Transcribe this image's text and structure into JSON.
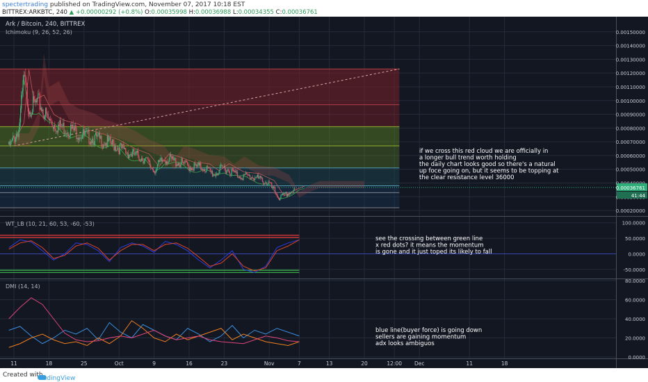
{
  "header": {
    "author": "spectertrading",
    "published_text": "published on TradingView.com, November 07, 2017 10:18 EST",
    "symbol_label": "BITTREX:ARKBTC, 240",
    "change_arrow": "▲",
    "change_text": "+0.00000292 (+0.8%)",
    "o_label": "O:",
    "o_value": "0.00035998",
    "h_label": "H:",
    "h_value": "0.00036988",
    "l_label": "L:",
    "l_value": "0.00034355",
    "c_label": "C:",
    "c_value": "0.00036761"
  },
  "legends": {
    "main_title": "Ark / Bitcoin, 240, BITTREX",
    "main_indicator": "Ichimoku (9, 26, 52, 26)",
    "wt_title": "WT_LB (10, 21, 60, 53, -60, -53)",
    "dmi_title": "DMI (14, 14)"
  },
  "price_tags": {
    "last_price": "0.00036761",
    "countdown": "41:44"
  },
  "footer": {
    "created_with": "Created with",
    "brand": "TradingView"
  },
  "colors": {
    "background": "#131722",
    "grid": "#262b3a",
    "axis_text": "#c9ccd4",
    "candle_up": "#3fae7a",
    "candle_down": "#e0506a",
    "fib_red": "#7a2028",
    "fib_green": "#557a22",
    "fib_teal": "#1c4a52",
    "fib_blue": "#183a5a",
    "wt_red_level": "#e03a3a",
    "wt_green_level": "#3cbf4a",
    "wt_fast": "#2a3fe0",
    "wt_slow": "#e0452a",
    "dmi_plus": "#3a8fe0",
    "dmi_minus": "#f08020",
    "adx": "#e0457a"
  },
  "annotations": {
    "main": [
      "if we cross this red cloud we are officially in",
      "a longer bull trend worth holding",
      "the daily chart looks good so there's a natural",
      "up foce going on, but it seems to be topping at",
      "the clear resistance level 36000"
    ],
    "wt": [
      "see the  crossing between green line",
      "x red dots? it means the momentum",
      "is gone and it just toped its likely to fall"
    ],
    "dmi": [
      "blue line(buyer force) is going down",
      "sellers are gaining momentum",
      "adx looks ambiguos"
    ]
  },
  "chart_data": [
    {
      "type": "candlestick",
      "title": "Ark / Bitcoin, 240, BITTREX",
      "indicator": "Ichimoku (9, 26, 52, 26)",
      "x_tick_labels": [
        "11",
        "18",
        "25",
        "Oct",
        "9",
        "16",
        "23",
        "Nov",
        "7",
        "13",
        "20",
        "12:00",
        "Dec",
        "11",
        "18"
      ],
      "y_tick_labels": [
        "0.00150000",
        "0.00140000",
        "0.00130000",
        "0.00120000",
        "0.00110000",
        "0.00100000",
        "0.00090000",
        "0.00080000",
        "0.00070000",
        "0.00060000",
        "0.00050000",
        "0.00040000",
        "0.00030000",
        "0.00020000"
      ],
      "y_ticks": [
        0.0015,
        0.0014,
        0.0013,
        0.0012,
        0.0011,
        0.001,
        0.0009,
        0.0008,
        0.0007,
        0.0006,
        0.0005,
        0.0004,
        0.0003,
        0.0002
      ],
      "ylim": [
        0.00017,
        0.00159
      ],
      "last_price": 0.00036761,
      "fib_levels": [
        0.00123,
        0.00097,
        0.00081,
        0.00067,
        0.00051,
        0.00038,
        0.00033,
        0.00022
      ],
      "trendline": {
        "start": [
          "Sep 11",
          0.00067
        ],
        "end": [
          "Nov 27",
          0.00123
        ]
      },
      "approx_close": [
        [
          "Sep 10",
          0.00068
        ],
        [
          "Sep 12",
          0.00082
        ],
        [
          "Sep 13",
          0.0012
        ],
        [
          "Sep 14",
          0.00098
        ],
        [
          "Sep 16",
          0.00102
        ],
        [
          "Sep 18",
          0.00088
        ],
        [
          "Sep 20",
          0.00084
        ],
        [
          "Sep 23",
          0.00081
        ],
        [
          "Sep 25",
          0.00077
        ],
        [
          "Sep 28",
          0.00074
        ],
        [
          "Oct 1",
          0.0007
        ],
        [
          "Oct 4",
          0.00064
        ],
        [
          "Oct 7",
          0.0006
        ],
        [
          "Oct 9",
          0.00051
        ],
        [
          "Oct 11",
          0.0006
        ],
        [
          "Oct 13",
          0.00058
        ],
        [
          "Oct 16",
          0.00054
        ],
        [
          "Oct 19",
          0.00053
        ],
        [
          "Oct 21",
          0.00048
        ],
        [
          "Oct 23",
          0.00053
        ],
        [
          "Oct 26",
          0.00047
        ],
        [
          "Oct 29",
          0.00046
        ],
        [
          "Nov 1",
          0.00041
        ],
        [
          "Nov 3",
          0.0003
        ],
        [
          "Nov 5",
          0.00034
        ],
        [
          "Nov 7",
          0.00037
        ]
      ]
    },
    {
      "type": "line",
      "title": "WT_LB (10, 21, 60, 53, -60, -53)",
      "y_tick_labels": [
        "100.0000",
        "50.0000",
        "0.0000",
        "-50.0000"
      ],
      "y_ticks": [
        100,
        50,
        0,
        -50
      ],
      "ylim": [
        -75,
        115
      ],
      "levels": [
        60,
        53,
        -53,
        -60
      ],
      "series": [
        {
          "approx_values": [
            20,
            45,
            38,
            10,
            -20,
            0,
            35,
            30,
            10,
            -25,
            20,
            35,
            25,
            5,
            40,
            30,
            10,
            -20,
            -45,
            -20,
            10,
            -50,
            -60,
            -40,
            20,
            35,
            45
          ]
        },
        {
          "approx_values": [
            15,
            35,
            42,
            20,
            -15,
            -5,
            25,
            35,
            18,
            -20,
            10,
            30,
            30,
            10,
            30,
            35,
            18,
            -10,
            -40,
            -30,
            0,
            -40,
            -55,
            -45,
            10,
            25,
            45
          ]
        }
      ]
    },
    {
      "type": "line",
      "title": "DMI (14, 14)",
      "y_tick_labels": [
        "80.0000",
        "60.0000",
        "40.0000",
        "20.0000",
        "0.0000"
      ],
      "y_ticks": [
        80,
        60,
        40,
        20,
        0
      ],
      "ylim": [
        0,
        80
      ],
      "series": [
        {
          "approx_values": [
            28,
            32,
            22,
            14,
            20,
            28,
            24,
            30,
            18,
            36,
            26,
            20,
            34,
            28,
            22,
            18,
            30,
            24,
            16,
            22,
            33,
            20,
            28,
            24,
            30,
            26,
            22
          ]
        },
        {
          "approx_values": [
            10,
            14,
            20,
            24,
            18,
            14,
            16,
            12,
            20,
            14,
            22,
            38,
            30,
            20,
            16,
            24,
            18,
            22,
            26,
            30,
            18,
            24,
            20,
            16,
            14,
            12,
            16
          ]
        },
        {
          "approx_values": [
            40,
            52,
            62,
            55,
            40,
            25,
            18,
            16,
            17,
            20,
            22,
            20,
            24,
            28,
            22,
            18,
            20,
            22,
            18,
            16,
            15,
            14,
            18,
            22,
            20,
            17,
            16
          ]
        }
      ]
    }
  ]
}
